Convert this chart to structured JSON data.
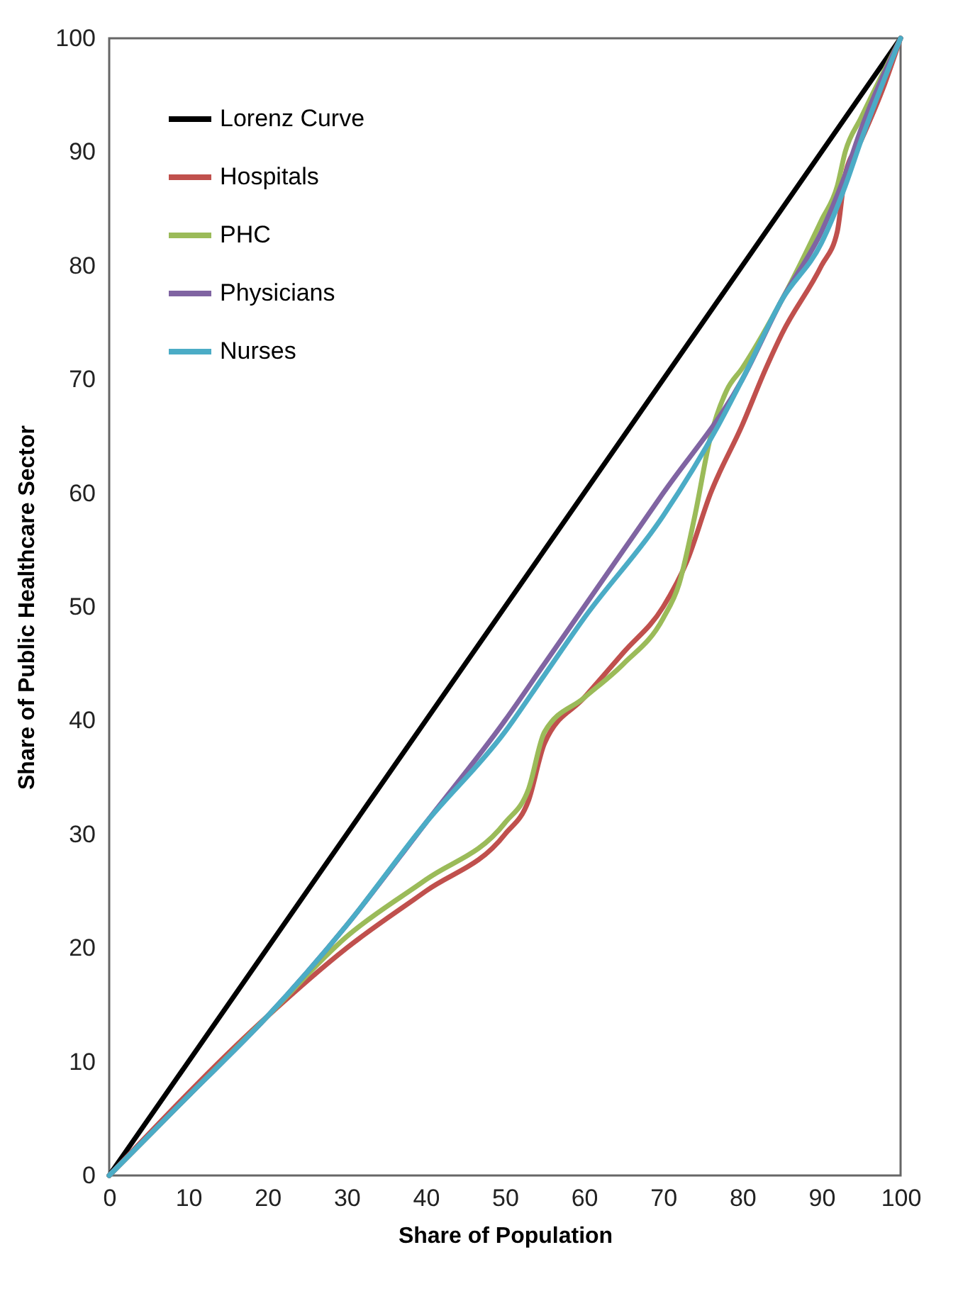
{
  "chart_data": {
    "type": "line",
    "xlabel": "Share of Population",
    "ylabel": "Share of Public Healthcare Sector",
    "xlim": [
      0,
      100
    ],
    "ylim": [
      0,
      100
    ],
    "xticks": [
      0,
      10,
      20,
      30,
      40,
      50,
      60,
      70,
      80,
      90,
      100
    ],
    "yticks": [
      0,
      10,
      20,
      30,
      40,
      50,
      60,
      70,
      80,
      90,
      100
    ],
    "grid": false,
    "legend": "top left",
    "marker": "none",
    "line_style": "solid",
    "series": [
      {
        "name": "Lorenz Curve",
        "color": "#000000",
        "x": [
          0,
          100
        ],
        "values": [
          0,
          100
        ]
      },
      {
        "name": "Hospitals",
        "color": "#c0504d",
        "x": [
          0,
          20,
          30,
          40,
          50,
          53,
          55,
          60,
          65,
          70,
          73,
          76,
          80,
          83,
          85,
          90,
          92,
          93,
          95,
          98,
          100
        ],
        "values": [
          0,
          14,
          20,
          25,
          30,
          33,
          38,
          42,
          46,
          50,
          54,
          60,
          66,
          71,
          74,
          80,
          83,
          88,
          91,
          96,
          100
        ]
      },
      {
        "name": "PHC",
        "color": "#9bbb59",
        "x": [
          0,
          20,
          30,
          40,
          50,
          53,
          55,
          60,
          65,
          70,
          72,
          74,
          76,
          78,
          80,
          85,
          90,
          92,
          93,
          95,
          100
        ],
        "values": [
          0,
          14,
          21,
          26,
          31,
          34,
          39,
          42,
          45,
          49,
          52,
          58,
          65,
          69,
          71,
          77,
          84,
          87,
          90,
          93,
          100
        ]
      },
      {
        "name": "Physicians",
        "color": "#8064a2",
        "x": [
          0,
          10,
          20,
          30,
          40,
          50,
          55,
          60,
          70,
          80,
          85,
          90,
          93,
          95,
          100
        ],
        "values": [
          0,
          7,
          14,
          22,
          31,
          40,
          45,
          50,
          60,
          70,
          77,
          83,
          88,
          92,
          100
        ]
      },
      {
        "name": "Nurses",
        "color": "#4bacc6",
        "x": [
          0,
          10,
          20,
          30,
          40,
          50,
          55,
          60,
          70,
          77,
          80,
          85,
          90,
          93,
          95,
          100
        ],
        "values": [
          0,
          7,
          14,
          22,
          31,
          39,
          44,
          49,
          58,
          66,
          70,
          77,
          82,
          87,
          91,
          100
        ]
      }
    ]
  }
}
